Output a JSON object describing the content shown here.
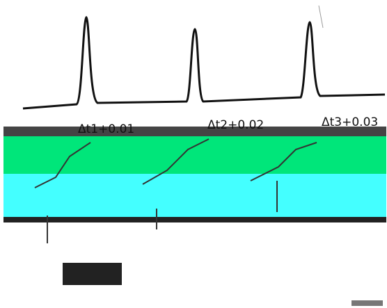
{
  "waveform": {
    "labels": [
      "Δt1+0.01",
      "Δt2+0.02",
      "Δt3+0.03"
    ]
  }
}
